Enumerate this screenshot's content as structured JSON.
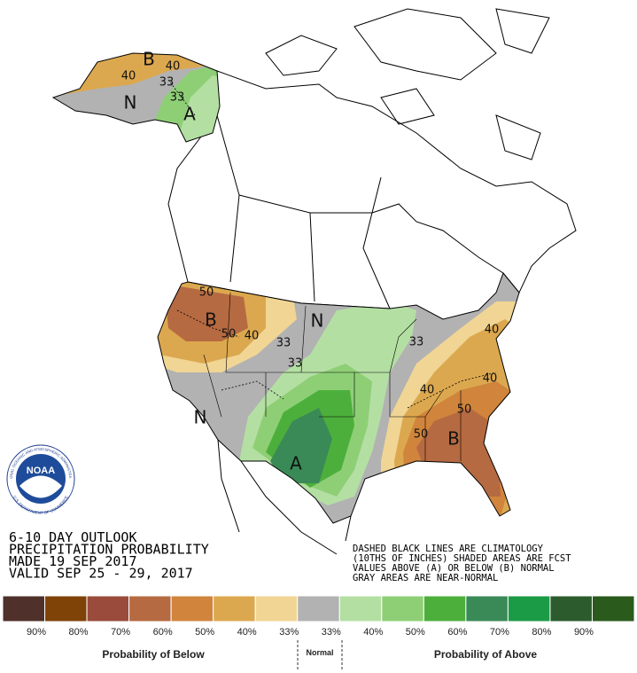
{
  "logo": {
    "name": "NOAA",
    "ring_top": "NATIONAL OCEANIC AND ATMOSPHERIC ADMINISTRATION",
    "ring_bottom": "U.S. DEPARTMENT OF COMMERCE"
  },
  "map_labels": [
    "B",
    "40",
    "40",
    "33",
    "N",
    "33",
    "A",
    "50",
    "B",
    "50",
    "40",
    "33",
    "N",
    "33",
    "33",
    "40",
    "40",
    "40",
    "50",
    "N",
    "A",
    "50",
    "B"
  ],
  "title_lines": [
    "6-10 DAY OUTLOOK",
    "PRECIPITATION PROBABILITY",
    "MADE  19 SEP 2017",
    "VALID  SEP 25 - 29, 2017"
  ],
  "notes": [
    "DASHED BLACK LINES ARE CLIMATOLOGY",
    "(10THS OF INCHES) SHADED AREAS ARE FCST",
    "VALUES ABOVE (A) OR BELOW (B) NORMAL",
    "GRAY AREAS ARE NEAR-NORMAL"
  ],
  "legend": {
    "entries": [
      {
        "label": "90%",
        "color": "#4f302b"
      },
      {
        "label": "80%",
        "color": "#7f4207"
      },
      {
        "label": "70%",
        "color": "#9a4b3b"
      },
      {
        "label": "60%",
        "color": "#b66a41"
      },
      {
        "label": "50%",
        "color": "#d0843c"
      },
      {
        "label": "40%",
        "color": "#dca84f"
      },
      {
        "label": "33%",
        "color": "#f1d594"
      },
      {
        "label": "33%",
        "color": "#b2b2b2"
      },
      {
        "label": "40%",
        "color": "#b4dfa3"
      },
      {
        "label": "50%",
        "color": "#8ecf76"
      },
      {
        "label": "60%",
        "color": "#4daf3b"
      },
      {
        "label": "70%",
        "color": "#3a8a57"
      },
      {
        "label": "80%",
        "color": "#1c9b47"
      },
      {
        "label": "90%",
        "color": "#2c5c2d"
      },
      {
        "label": "",
        "color": "#2a5a1c"
      }
    ],
    "below": "Probability of Below",
    "normal": "Normal",
    "above": "Probability of Above"
  }
}
